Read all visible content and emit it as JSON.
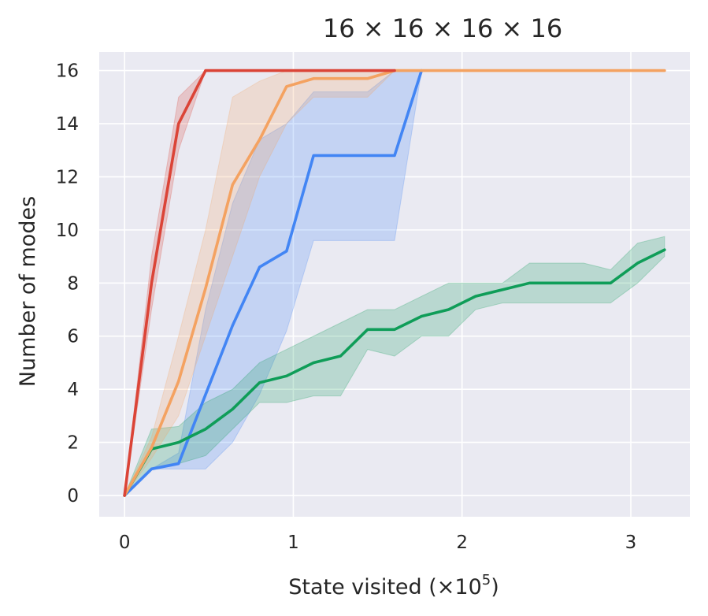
{
  "chart_data": {
    "type": "line",
    "title": "16 × 16 × 16 × 16",
    "xlabel_prefix": "State visited (×10",
    "xlabel_exponent": "5",
    "xlabel_suffix": ")",
    "ylabel": "Number of modes",
    "xlim": [
      -0.15,
      3.35
    ],
    "ylim": [
      -0.8,
      16.7
    ],
    "xticks": [
      0,
      1,
      2,
      3
    ],
    "yticks": [
      0,
      2,
      4,
      6,
      8,
      10,
      12,
      14,
      16
    ],
    "grid": true,
    "background": "#eaeaf2",
    "series": [
      {
        "color": "#4285f4",
        "x": [
          0,
          0.16,
          0.32,
          0.48,
          0.64,
          0.8,
          0.96,
          1.12,
          1.28,
          1.44,
          1.6,
          1.76
        ],
        "y": [
          0,
          1.0,
          1.2,
          3.8,
          6.4,
          8.6,
          9.2,
          12.8,
          12.8,
          12.8,
          12.8,
          16
        ],
        "lower": [
          0,
          1.0,
          1.0,
          1.0,
          2.0,
          3.8,
          6.2,
          9.6,
          9.6,
          9.6,
          9.6,
          16
        ],
        "upper": [
          0,
          1.0,
          1.6,
          7.0,
          11.0,
          13.4,
          14.0,
          15.2,
          15.2,
          15.2,
          16,
          16
        ]
      },
      {
        "color": "#0f9d58",
        "x": [
          0,
          0.16,
          0.32,
          0.48,
          0.64,
          0.8,
          0.96,
          1.12,
          1.28,
          1.44,
          1.6,
          1.76,
          1.92,
          2.08,
          2.24,
          2.4,
          2.56,
          2.72,
          2.88,
          3.04,
          3.2
        ],
        "y": [
          0,
          1.75,
          2.0,
          2.5,
          3.25,
          4.25,
          4.5,
          5.0,
          5.25,
          6.25,
          6.25,
          6.75,
          7.0,
          7.5,
          7.75,
          8.0,
          8.0,
          8.0,
          8.0,
          8.75,
          9.25
        ],
        "lower": [
          0,
          1.0,
          1.2,
          1.5,
          2.5,
          3.5,
          3.5,
          3.75,
          3.75,
          5.5,
          5.25,
          6.0,
          6.0,
          7.0,
          7.25,
          7.25,
          7.25,
          7.25,
          7.25,
          8.0,
          9.0
        ],
        "upper": [
          0,
          2.5,
          2.6,
          3.5,
          4.0,
          5.0,
          5.5,
          6.0,
          6.5,
          7.0,
          7.0,
          7.5,
          8.0,
          8.0,
          8.0,
          8.75,
          8.75,
          8.75,
          8.5,
          9.5,
          9.75
        ]
      },
      {
        "color": "#f4a261",
        "x": [
          0,
          0.16,
          0.32,
          0.48,
          0.64,
          0.8,
          0.96,
          1.12,
          1.28,
          1.44,
          1.6,
          1.76,
          1.92,
          2.08,
          2.24,
          2.4,
          2.56,
          2.72,
          2.88,
          3.04,
          3.2
        ],
        "y": [
          0,
          1.8,
          4.3,
          7.8,
          11.7,
          13.4,
          15.4,
          15.7,
          15.7,
          15.7,
          16,
          16,
          16,
          16,
          16,
          16,
          16,
          16,
          16,
          16,
          16
        ],
        "lower": [
          0,
          1.4,
          3.0,
          6.0,
          9.0,
          12.0,
          14.0,
          15.0,
          15.0,
          15.0,
          16,
          16,
          16,
          16,
          16,
          16,
          16,
          16,
          16,
          16,
          16
        ],
        "upper": [
          0,
          2.2,
          6.0,
          10.0,
          15.0,
          15.6,
          16.0,
          16.0,
          16.0,
          16.0,
          16,
          16,
          16,
          16,
          16,
          16,
          16,
          16,
          16,
          16,
          16
        ]
      },
      {
        "color": "#db4437",
        "x": [
          0,
          0.16,
          0.32,
          0.48,
          0.64,
          0.8,
          0.96,
          1.12,
          1.28,
          1.44,
          1.6
        ],
        "y": [
          0,
          8.0,
          14.0,
          16,
          16,
          16,
          16,
          16,
          16,
          16,
          16
        ],
        "lower": [
          0,
          7.0,
          13.0,
          16,
          16,
          16,
          16,
          16,
          16,
          16,
          16
        ],
        "upper": [
          0,
          9.0,
          15.0,
          16,
          16,
          16,
          16,
          16,
          16,
          16,
          16
        ]
      }
    ]
  }
}
